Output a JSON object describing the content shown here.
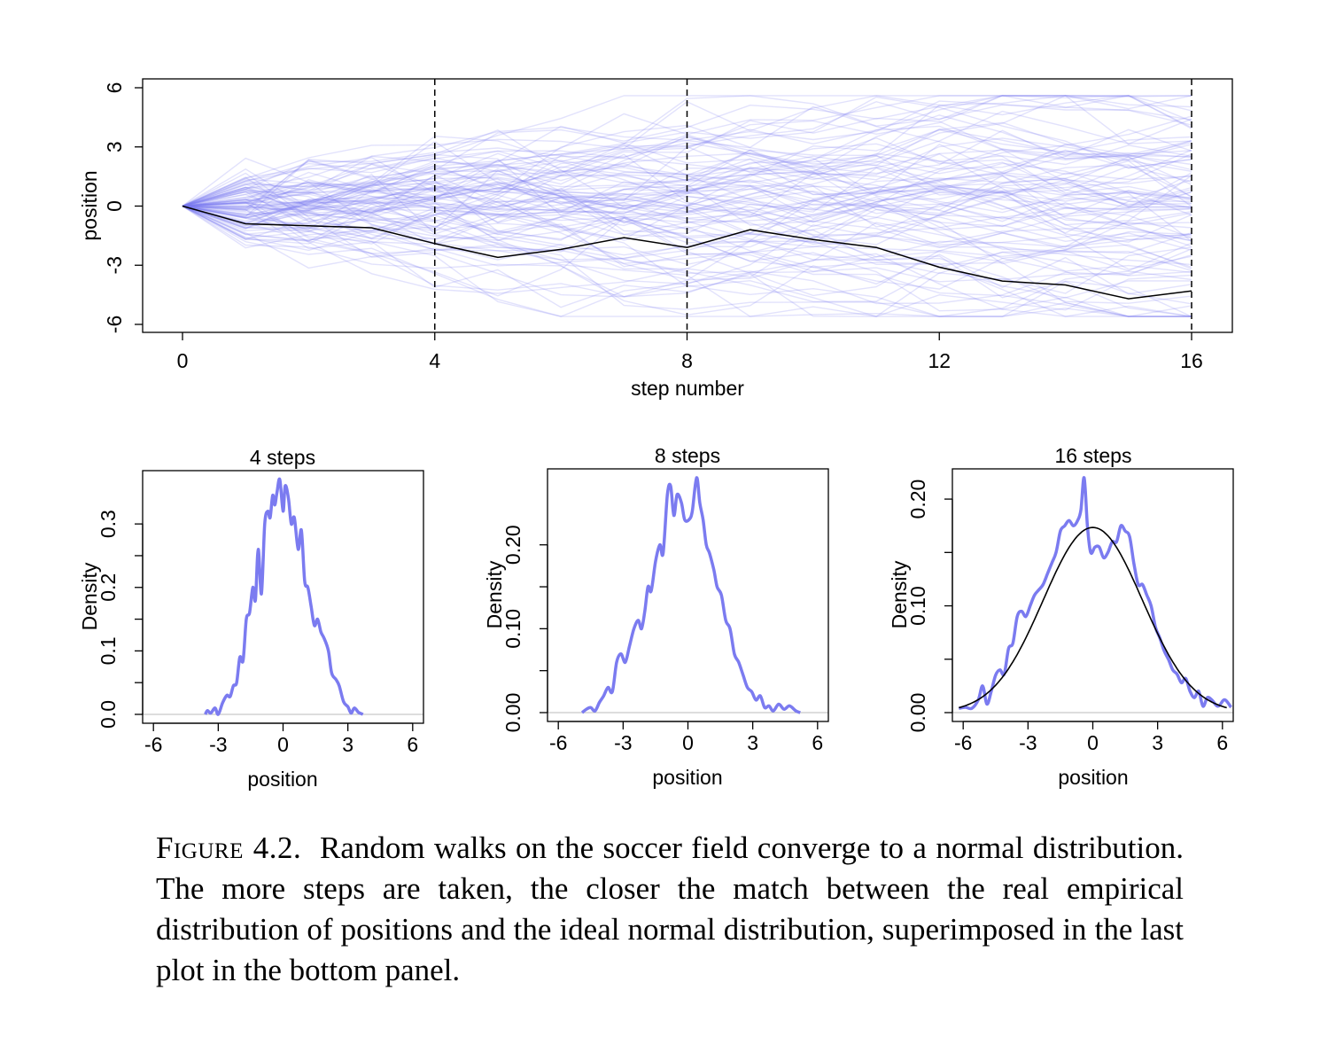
{
  "chart_data": [
    {
      "type": "line",
      "title": "",
      "xlabel": "step number",
      "ylabel": "position",
      "xlim": [
        0,
        16
      ],
      "ylim": [
        -6,
        6
      ],
      "xticks": [
        "0",
        "4",
        "8",
        "12",
        "16"
      ],
      "yticks": [
        "-6",
        "-3",
        "0",
        "3",
        "6"
      ],
      "vlines": [
        4,
        8,
        16
      ],
      "background_series": {
        "name": "simulated random walks",
        "count": 100,
        "color": "#7b7bf0"
      },
      "highlight_series": {
        "name": "single walk",
        "color": "#000000",
        "x": [
          0,
          1,
          2,
          3,
          4,
          5,
          6,
          7,
          8,
          9,
          10,
          11,
          12,
          13,
          14,
          15,
          16
        ],
        "y": [
          0,
          -0.9,
          -1.0,
          -1.1,
          -1.9,
          -2.6,
          -2.2,
          -1.6,
          -2.1,
          -1.2,
          -1.7,
          -2.1,
          -3.1,
          -3.8,
          -4.0,
          -4.7,
          -4.3
        ]
      }
    },
    {
      "type": "line",
      "title": "4 steps",
      "xlabel": "position",
      "ylabel": "Density",
      "xlim": [
        -6.5,
        6.5
      ],
      "ylim": [
        0,
        0.37
      ],
      "xticks": [
        "-6",
        "-3",
        "0",
        "3",
        "6"
      ],
      "yticks": [
        "0.0",
        "0.1",
        "0.2",
        "0.3"
      ],
      "series": [
        {
          "name": "empirical density",
          "color": "#7b7bf0",
          "points": [
            [
              -3.6,
              0
            ],
            [
              -3.5,
              0.006
            ],
            [
              -3.35,
              0.002
            ],
            [
              -3.15,
              0.01
            ],
            [
              -3.0,
              0.0
            ],
            [
              -2.8,
              0.018
            ],
            [
              -2.6,
              0.03
            ],
            [
              -2.45,
              0.028
            ],
            [
              -2.3,
              0.045
            ],
            [
              -2.15,
              0.05
            ],
            [
              -2.0,
              0.09
            ],
            [
              -1.85,
              0.085
            ],
            [
              -1.7,
              0.15
            ],
            [
              -1.55,
              0.16
            ],
            [
              -1.4,
              0.2
            ],
            [
              -1.28,
              0.18
            ],
            [
              -1.15,
              0.26
            ],
            [
              -1.0,
              0.19
            ],
            [
              -0.85,
              0.3
            ],
            [
              -0.7,
              0.32
            ],
            [
              -0.6,
              0.31
            ],
            [
              -0.48,
              0.345
            ],
            [
              -0.38,
              0.33
            ],
            [
              -0.28,
              0.35
            ],
            [
              -0.15,
              0.37
            ],
            [
              0.0,
              0.32
            ],
            [
              0.1,
              0.36
            ],
            [
              0.25,
              0.34
            ],
            [
              0.38,
              0.3
            ],
            [
              0.52,
              0.31
            ],
            [
              0.7,
              0.26
            ],
            [
              0.85,
              0.29
            ],
            [
              1.0,
              0.21
            ],
            [
              1.15,
              0.2
            ],
            [
              1.3,
              0.17
            ],
            [
              1.45,
              0.14
            ],
            [
              1.6,
              0.15
            ],
            [
              1.75,
              0.13
            ],
            [
              1.9,
              0.12
            ],
            [
              2.1,
              0.1
            ],
            [
              2.25,
              0.065
            ],
            [
              2.45,
              0.055
            ],
            [
              2.6,
              0.045
            ],
            [
              2.8,
              0.02
            ],
            [
              3.0,
              0.012
            ],
            [
              3.15,
              0.002
            ],
            [
              3.3,
              0.01
            ],
            [
              3.5,
              0.003
            ],
            [
              3.7,
              0
            ]
          ]
        }
      ]
    },
    {
      "type": "line",
      "title": "8 steps",
      "xlabel": "position",
      "ylabel": "Density",
      "xlim": [
        -6.5,
        6.5
      ],
      "ylim": [
        0,
        0.28
      ],
      "xticks": [
        "-6",
        "-3",
        "0",
        "3",
        "6"
      ],
      "yticks": [
        "0.00",
        "0.10",
        "0.20"
      ],
      "series": [
        {
          "name": "empirical density",
          "color": "#7b7bf0",
          "points": [
            [
              -4.9,
              0
            ],
            [
              -4.7,
              0.004
            ],
            [
              -4.5,
              0.006
            ],
            [
              -4.3,
              0.002
            ],
            [
              -4.1,
              0.012
            ],
            [
              -3.9,
              0.02
            ],
            [
              -3.7,
              0.03
            ],
            [
              -3.5,
              0.025
            ],
            [
              -3.3,
              0.06
            ],
            [
              -3.1,
              0.07
            ],
            [
              -2.9,
              0.06
            ],
            [
              -2.7,
              0.08
            ],
            [
              -2.5,
              0.1
            ],
            [
              -2.3,
              0.11
            ],
            [
              -2.15,
              0.1
            ],
            [
              -2.0,
              0.12
            ],
            [
              -1.85,
              0.15
            ],
            [
              -1.7,
              0.145
            ],
            [
              -1.5,
              0.18
            ],
            [
              -1.3,
              0.2
            ],
            [
              -1.15,
              0.19
            ],
            [
              -0.95,
              0.26
            ],
            [
              -0.8,
              0.27
            ],
            [
              -0.65,
              0.235
            ],
            [
              -0.5,
              0.26
            ],
            [
              -0.3,
              0.25
            ],
            [
              -0.15,
              0.23
            ],
            [
              0.05,
              0.23
            ],
            [
              0.2,
              0.24
            ],
            [
              0.4,
              0.28
            ],
            [
              0.55,
              0.25
            ],
            [
              0.7,
              0.23
            ],
            [
              0.85,
              0.2
            ],
            [
              1.0,
              0.19
            ],
            [
              1.2,
              0.17
            ],
            [
              1.35,
              0.15
            ],
            [
              1.55,
              0.14
            ],
            [
              1.75,
              0.11
            ],
            [
              1.95,
              0.1
            ],
            [
              2.15,
              0.07
            ],
            [
              2.35,
              0.06
            ],
            [
              2.55,
              0.045
            ],
            [
              2.75,
              0.03
            ],
            [
              2.95,
              0.025
            ],
            [
              3.15,
              0.015
            ],
            [
              3.35,
              0.02
            ],
            [
              3.55,
              0.006
            ],
            [
              3.75,
              0.008
            ],
            [
              3.95,
              0.002
            ],
            [
              4.2,
              0.01
            ],
            [
              4.45,
              0.004
            ],
            [
              4.7,
              0.008
            ],
            [
              5.0,
              0.002
            ],
            [
              5.2,
              0
            ]
          ]
        }
      ]
    },
    {
      "type": "line",
      "title": "16 steps",
      "xlabel": "position",
      "ylabel": "Density",
      "xlim": [
        -6.5,
        6.5
      ],
      "ylim": [
        0,
        0.22
      ],
      "xticks": [
        "-6",
        "-3",
        "0",
        "3",
        "6"
      ],
      "yticks": [
        "0.00",
        "0.10",
        "0.20"
      ],
      "series": [
        {
          "name": "empirical density",
          "color": "#7b7bf0",
          "points": [
            [
              -6.2,
              0.004
            ],
            [
              -5.9,
              0.005
            ],
            [
              -5.6,
              0.004
            ],
            [
              -5.3,
              0.012
            ],
            [
              -5.1,
              0.025
            ],
            [
              -4.9,
              0.008
            ],
            [
              -4.7,
              0.02
            ],
            [
              -4.5,
              0.035
            ],
            [
              -4.3,
              0.04
            ],
            [
              -4.1,
              0.036
            ],
            [
              -3.9,
              0.06
            ],
            [
              -3.7,
              0.065
            ],
            [
              -3.5,
              0.09
            ],
            [
              -3.3,
              0.095
            ],
            [
              -3.1,
              0.09
            ],
            [
              -2.9,
              0.1
            ],
            [
              -2.7,
              0.11
            ],
            [
              -2.5,
              0.115
            ],
            [
              -2.3,
              0.12
            ],
            [
              -2.1,
              0.13
            ],
            [
              -1.9,
              0.14
            ],
            [
              -1.7,
              0.15
            ],
            [
              -1.5,
              0.17
            ],
            [
              -1.3,
              0.175
            ],
            [
              -1.1,
              0.18
            ],
            [
              -0.9,
              0.175
            ],
            [
              -0.7,
              0.18
            ],
            [
              -0.55,
              0.19
            ],
            [
              -0.4,
              0.22
            ],
            [
              -0.25,
              0.175
            ],
            [
              -0.1,
              0.15
            ],
            [
              0.1,
              0.155
            ],
            [
              0.3,
              0.155
            ],
            [
              0.5,
              0.145
            ],
            [
              0.7,
              0.15
            ],
            [
              0.9,
              0.16
            ],
            [
              1.1,
              0.16
            ],
            [
              1.3,
              0.175
            ],
            [
              1.5,
              0.17
            ],
            [
              1.7,
              0.165
            ],
            [
              1.9,
              0.14
            ],
            [
              2.1,
              0.12
            ],
            [
              2.3,
              0.12
            ],
            [
              2.5,
              0.11
            ],
            [
              2.7,
              0.1
            ],
            [
              2.9,
              0.08
            ],
            [
              3.1,
              0.07
            ],
            [
              3.3,
              0.058
            ],
            [
              3.5,
              0.05
            ],
            [
              3.7,
              0.04
            ],
            [
              3.9,
              0.036
            ],
            [
              4.1,
              0.028
            ],
            [
              4.3,
              0.032
            ],
            [
              4.5,
              0.02
            ],
            [
              4.7,
              0.014
            ],
            [
              4.9,
              0.02
            ],
            [
              5.1,
              0.006
            ],
            [
              5.3,
              0.014
            ],
            [
              5.5,
              0.012
            ],
            [
              5.8,
              0.006
            ],
            [
              6.1,
              0.012
            ],
            [
              6.4,
              0.005
            ]
          ]
        },
        {
          "name": "normal distribution",
          "color": "#000000",
          "mean": 0,
          "sd": 2.3
        }
      ]
    }
  ],
  "caption": {
    "label": "Figure 4.2.",
    "text": "Random walks on the soccer field converge to a normal distribution. The more steps are taken, the closer the match between the real empirical distribution of positions and the ideal normal distribution, superimposed in the last plot in the bottom panel."
  }
}
